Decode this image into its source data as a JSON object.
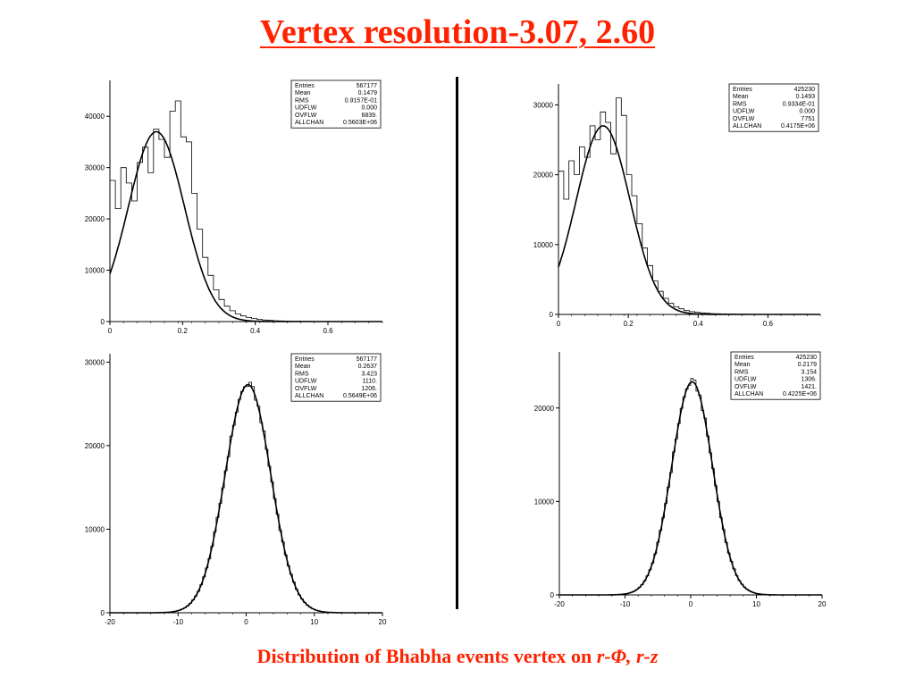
{
  "slide": {
    "title": "Vertex resolution-3.07, 2.60",
    "caption_prefix": "Distribution of Bhabha events vertex on ",
    "caption_rphi": "r-Φ",
    "caption_sep": ", ",
    "caption_rz": "r-z"
  },
  "chart_data": [
    {
      "id": "top-left",
      "type": "histogram",
      "title": "",
      "xlabel": "",
      "ylabel": "",
      "xlim": [
        0,
        0.75
      ],
      "ylim": [
        0,
        47000
      ],
      "x_ticks": [
        0,
        0.2,
        0.4,
        0.6
      ],
      "x_tick_labels": [
        "0",
        "0.2",
        "0.4",
        "0.6"
      ],
      "y_ticks": [
        0,
        10000,
        20000,
        30000,
        40000
      ],
      "y_tick_labels": [
        "0",
        "10000",
        "20000",
        "30000",
        "40000"
      ],
      "stats": [
        {
          "label": "Entries",
          "value": "567177"
        },
        {
          "label": "Mean",
          "value": "0.1479"
        },
        {
          "label": "RMS",
          "value": "0.9157E-01"
        },
        {
          "label": "UDFLW",
          "value": "0.000"
        },
        {
          "label": "OVFLW",
          "value": "6839."
        },
        {
          "label": "ALLCHAN",
          "value": "0.5603E+06"
        }
      ],
      "legend": "top-right",
      "bin_width": 0.015,
      "bin_start": 0,
      "histogram": [
        27500,
        22000,
        30000,
        27000,
        23500,
        31000,
        34000,
        29000,
        37500,
        35500,
        32000,
        41000,
        43000,
        36000,
        35000,
        25000,
        18000,
        12500,
        9000,
        6200,
        4300,
        3000,
        2100,
        1500,
        1100,
        800,
        600,
        400,
        300,
        220,
        160,
        120,
        90,
        70,
        50,
        40,
        30,
        20,
        15,
        10,
        8,
        6,
        5,
        4,
        3,
        2,
        2,
        1,
        1,
        1
      ],
      "fit": {
        "function": "gaussian",
        "amplitude": 37000,
        "mean": 0.128,
        "sigma": 0.077
      }
    },
    {
      "id": "top-right",
      "type": "histogram",
      "title": "",
      "xlabel": "",
      "ylabel": "",
      "xlim": [
        0,
        0.75
      ],
      "ylim": [
        0,
        33000
      ],
      "x_ticks": [
        0,
        0.2,
        0.4,
        0.6
      ],
      "x_tick_labels": [
        "0",
        "0.2",
        "0.4",
        "0.6"
      ],
      "y_ticks": [
        0,
        10000,
        20000,
        30000
      ],
      "y_tick_labels": [
        "0",
        "10000",
        "20000",
        "30000"
      ],
      "stats": [
        {
          "label": "Entries",
          "value": "425230"
        },
        {
          "label": "Mean",
          "value": "0.1493"
        },
        {
          "label": "RMS",
          "value": "0.9334E-01"
        },
        {
          "label": "UDFLW",
          "value": "0.000"
        },
        {
          "label": "OVFLW",
          "value": "7751"
        },
        {
          "label": "ALLCHAN",
          "value": "0.4175E+06"
        }
      ],
      "legend": "top-right",
      "bin_width": 0.015,
      "bin_start": 0,
      "histogram": [
        20500,
        16500,
        22000,
        20000,
        24000,
        22500,
        27000,
        25000,
        29000,
        27500,
        23000,
        31000,
        28500,
        20000,
        17000,
        13000,
        9500,
        7000,
        4800,
        3300,
        2300,
        1600,
        1100,
        800,
        550,
        400,
        300,
        220,
        160,
        120,
        90,
        65,
        50,
        35,
        25,
        20,
        15,
        10,
        8,
        6,
        5,
        4,
        3,
        2,
        2,
        1,
        1,
        1,
        1,
        1
      ],
      "fit": {
        "function": "gaussian",
        "amplitude": 27000,
        "mean": 0.128,
        "sigma": 0.077
      }
    },
    {
      "id": "bottom-left",
      "type": "histogram",
      "title": "",
      "xlabel": "",
      "ylabel": "",
      "xlim": [
        -20,
        20
      ],
      "ylim": [
        0,
        31000
      ],
      "x_ticks": [
        -20,
        -10,
        0,
        10,
        20
      ],
      "x_tick_labels": [
        "-20",
        "-10",
        "0",
        "10",
        "20"
      ],
      "y_ticks": [
        0,
        10000,
        20000,
        30000
      ],
      "y_tick_labels": [
        "0",
        "10000",
        "20000",
        "30000"
      ],
      "stats": [
        {
          "label": "Entries",
          "value": "567177"
        },
        {
          "label": "Mean",
          "value": "0.2637"
        },
        {
          "label": "RMS",
          "value": "3.423"
        },
        {
          "label": "UDFLW",
          "value": "1110."
        },
        {
          "label": "OVFLW",
          "value": "1206."
        },
        {
          "label": "ALLCHAN",
          "value": "0.5649E+06"
        }
      ],
      "legend": "top-right",
      "bin_width": 0.4,
      "bin_start": -20,
      "fit": {
        "function": "gaussian",
        "amplitude": 27300,
        "mean": 0.26,
        "sigma": 3.35
      }
    },
    {
      "id": "bottom-right",
      "type": "histogram",
      "title": "",
      "xlabel": "",
      "ylabel": "",
      "xlim": [
        -20,
        20
      ],
      "ylim": [
        0,
        26000
      ],
      "x_ticks": [
        -20,
        -10,
        0,
        10,
        20
      ],
      "x_tick_labels": [
        "-20",
        "-10",
        "0",
        "10",
        "20"
      ],
      "y_ticks": [
        0,
        10000,
        20000
      ],
      "y_tick_labels": [
        "0",
        "10000",
        "20000"
      ],
      "stats": [
        {
          "label": "Entries",
          "value": "425230"
        },
        {
          "label": "Mean",
          "value": "0.2179"
        },
        {
          "label": "RMS",
          "value": "3.154"
        },
        {
          "label": "UDFLW",
          "value": "1306."
        },
        {
          "label": "OVFLW",
          "value": "1421."
        },
        {
          "label": "ALLCHAN",
          "value": "0.4225E+06"
        }
      ],
      "legend": "top-right",
      "bin_width": 0.4,
      "bin_start": -20,
      "fit": {
        "function": "gaussian",
        "amplitude": 22800,
        "mean": 0.22,
        "sigma": 3.1
      }
    }
  ]
}
